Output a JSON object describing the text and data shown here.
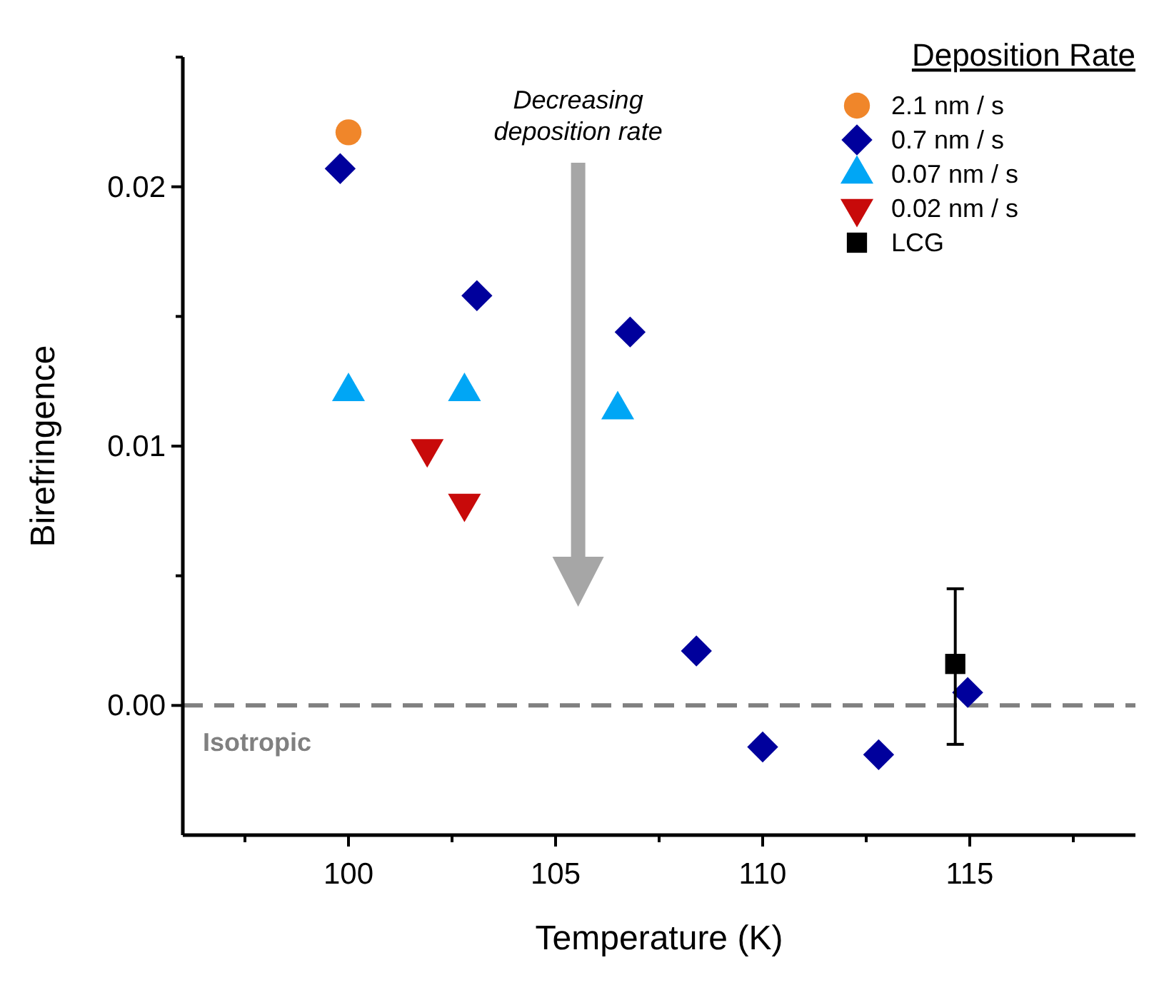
{
  "chart_data": {
    "type": "scatter",
    "xlabel": "Temperature (K)",
    "ylabel": "Birefringence",
    "legend_title": "Deposition Rate",
    "legend": "top right",
    "xlim": [
      96,
      119
    ],
    "xticks": [
      {
        "value": 97.5,
        "label": null
      },
      100,
      {
        "value": 102.5,
        "label": null
      },
      105,
      {
        "value": 107.5,
        "label": null
      },
      110,
      {
        "value": 112.5,
        "label": null
      },
      115,
      {
        "value": 117.5,
        "label": null
      }
    ],
    "ylim": [
      -0.005,
      0.025
    ],
    "yticks": [
      {
        "value": 0.0,
        "label": "0.00"
      },
      {
        "value": 0.005,
        "label": null
      },
      {
        "value": 0.01,
        "label": "0.01"
      },
      {
        "value": 0.015,
        "label": null
      },
      {
        "value": 0.02,
        "label": "0.02"
      },
      {
        "value": 0.025,
        "label": null
      }
    ],
    "series": [
      {
        "name": "2.1 nm / s",
        "color": "#f0862a",
        "marker": "circle",
        "x": [
          100.0
        ],
        "values": [
          0.0221
        ]
      },
      {
        "name": "0.7 nm / s",
        "color": "#00009c",
        "marker": "diamond",
        "x": [
          99.8,
          103.1,
          106.8,
          108.4,
          110.0,
          112.8,
          114.95
        ],
        "values": [
          0.0207,
          0.0158,
          0.0144,
          0.0021,
          -0.0016,
          -0.0019,
          0.0005
        ]
      },
      {
        "name": "0.07 nm / s",
        "color": "#00a6f5",
        "marker": "triangle",
        "x": [
          100.0,
          102.8,
          106.5
        ],
        "values": [
          0.0121,
          0.0121,
          0.0114
        ]
      },
      {
        "name": "0.02 nm / s",
        "color": "#c80a0a",
        "marker": "triangle-down",
        "x": [
          101.9,
          102.8
        ],
        "values": [
          0.0099,
          0.0078
        ]
      },
      {
        "name": "LCG",
        "color": "#000000",
        "marker": "square",
        "x": [
          114.65
        ],
        "values": [
          0.0016
        ],
        "errors": [
          [
            -0.0015,
            0.0045
          ]
        ]
      }
    ],
    "ref_lines": [
      {
        "axis": "y",
        "value": 0,
        "label": "Isotropic",
        "color": "#808080",
        "line_style": "dashed"
      }
    ],
    "annotations": [
      "Decreasing deposition rate"
    ]
  }
}
